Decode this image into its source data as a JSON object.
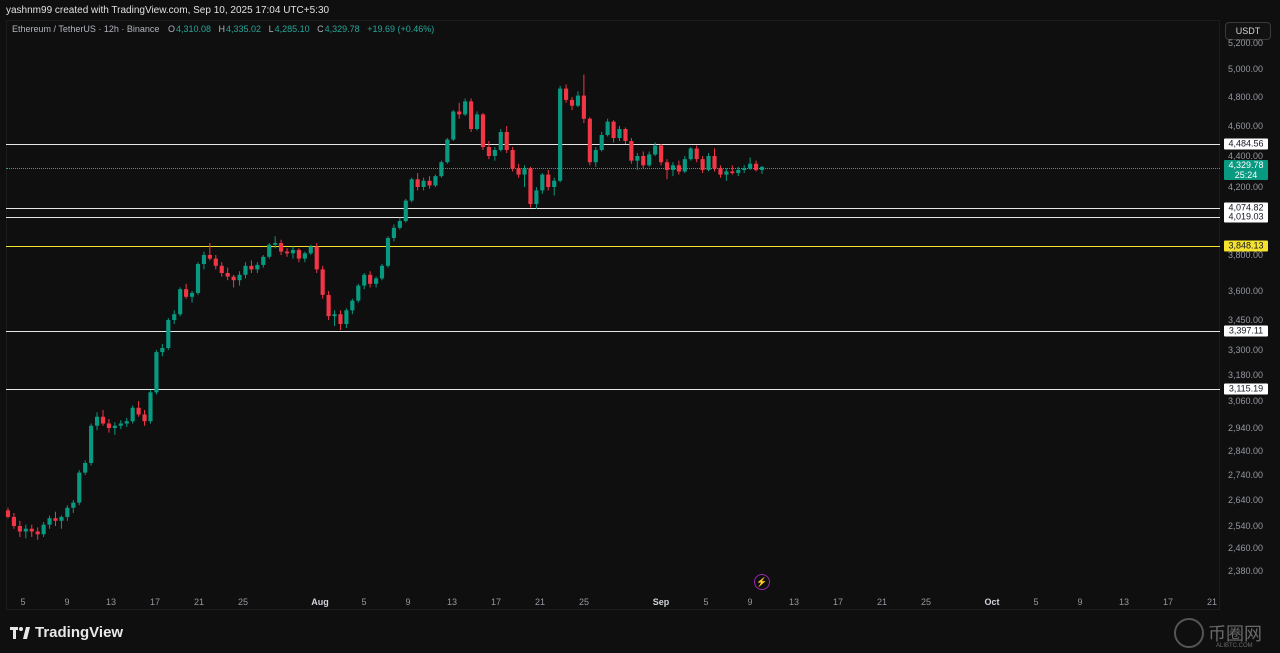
{
  "attribution": "yashnm99 created with TradingView.com, Sep 10, 2025 17:04 UTC+5:30",
  "legend": {
    "symbol": "Ethereum / TetherUS · 12h · Binance",
    "open_label": "O",
    "open": "4,310.08",
    "high_label": "H",
    "high": "4,335.02",
    "low_label": "L",
    "low": "4,285.10",
    "close_label": "C",
    "close": "4,329.78",
    "change": "+19.69 (+0.46%)"
  },
  "currency_button": "USDT",
  "price_ticks": [
    "5,200.00",
    "5,000.00",
    "4,800.00",
    "4,600.00",
    "4,400.00",
    "4,200.00",
    "3,800.00",
    "3,600.00",
    "3,450.00",
    "3,300.00",
    "3,180.00",
    "3,060.00",
    "2,940.00",
    "2,840.00",
    "2,740.00",
    "2,640.00",
    "2,540.00",
    "2,460.00",
    "2,380.00"
  ],
  "levels": [
    {
      "value": "4,484.56",
      "style": "white"
    },
    {
      "value": "4,074.82",
      "style": "white"
    },
    {
      "value": "4,019.03",
      "style": "white"
    },
    {
      "value": "3,848.13",
      "style": "yellow"
    },
    {
      "value": "3,397.11",
      "style": "white"
    },
    {
      "value": "3,115.19",
      "style": "white"
    }
  ],
  "last_price": {
    "value": "4,329.78",
    "countdown": "25:24"
  },
  "time_ticks": [
    {
      "label": "5"
    },
    {
      "label": "9"
    },
    {
      "label": "13"
    },
    {
      "label": "17"
    },
    {
      "label": "21"
    },
    {
      "label": "25"
    },
    {
      "label": "Aug",
      "bold": true
    },
    {
      "label": "5"
    },
    {
      "label": "9"
    },
    {
      "label": "13"
    },
    {
      "label": "17"
    },
    {
      "label": "21"
    },
    {
      "label": "25"
    },
    {
      "label": "Sep",
      "bold": true
    },
    {
      "label": "5"
    },
    {
      "label": "9"
    },
    {
      "label": "13"
    },
    {
      "label": "17"
    },
    {
      "label": "21"
    },
    {
      "label": "25"
    },
    {
      "label": "Oct",
      "bold": true
    },
    {
      "label": "5"
    },
    {
      "label": "9"
    },
    {
      "label": "13"
    },
    {
      "label": "17"
    },
    {
      "label": "21"
    }
  ],
  "footer": {
    "brand": "TradingView"
  },
  "watermark": {
    "text": "币圈网",
    "sub": "ALIBTC.COM"
  },
  "colors": {
    "up": "#089981",
    "down": "#f23645",
    "level": "#ffffff",
    "key_level": "#f5e22e"
  },
  "chart_data": {
    "type": "candlestick",
    "timeframe": "12h",
    "ylim": [
      2330,
      5240
    ],
    "candles": [
      [
        2600,
        2610,
        2570,
        2575
      ],
      [
        2575,
        2590,
        2530,
        2540
      ],
      [
        2540,
        2560,
        2500,
        2520
      ],
      [
        2520,
        2545,
        2495,
        2530
      ],
      [
        2530,
        2545,
        2500,
        2520
      ],
      [
        2520,
        2535,
        2490,
        2510
      ],
      [
        2510,
        2555,
        2500,
        2545
      ],
      [
        2545,
        2580,
        2530,
        2570
      ],
      [
        2570,
        2595,
        2540,
        2560
      ],
      [
        2560,
        2580,
        2530,
        2575
      ],
      [
        2575,
        2620,
        2560,
        2610
      ],
      [
        2610,
        2640,
        2590,
        2630
      ],
      [
        2630,
        2760,
        2620,
        2750
      ],
      [
        2750,
        2800,
        2740,
        2790
      ],
      [
        2790,
        2960,
        2780,
        2950
      ],
      [
        2950,
        3010,
        2930,
        2990
      ],
      [
        2990,
        3020,
        2950,
        2960
      ],
      [
        2960,
        2980,
        2920,
        2940
      ],
      [
        2940,
        2965,
        2910,
        2950
      ],
      [
        2950,
        2975,
        2935,
        2960
      ],
      [
        2960,
        2985,
        2945,
        2970
      ],
      [
        2970,
        3040,
        2960,
        3030
      ],
      [
        3030,
        3060,
        2990,
        3000
      ],
      [
        3000,
        3020,
        2950,
        2970
      ],
      [
        2970,
        3110,
        2960,
        3100
      ],
      [
        3100,
        3300,
        3090,
        3290
      ],
      [
        3290,
        3330,
        3270,
        3310
      ],
      [
        3310,
        3460,
        3300,
        3450
      ],
      [
        3450,
        3500,
        3430,
        3480
      ],
      [
        3480,
        3620,
        3470,
        3610
      ],
      [
        3610,
        3640,
        3560,
        3570
      ],
      [
        3570,
        3600,
        3540,
        3590
      ],
      [
        3590,
        3760,
        3580,
        3750
      ],
      [
        3750,
        3820,
        3720,
        3800
      ],
      [
        3800,
        3870,
        3770,
        3780
      ],
      [
        3780,
        3800,
        3720,
        3740
      ],
      [
        3740,
        3760,
        3680,
        3700
      ],
      [
        3700,
        3730,
        3660,
        3680
      ],
      [
        3680,
        3690,
        3620,
        3660
      ],
      [
        3660,
        3710,
        3630,
        3690
      ],
      [
        3690,
        3760,
        3670,
        3740
      ],
      [
        3740,
        3770,
        3700,
        3720
      ],
      [
        3720,
        3760,
        3700,
        3745
      ],
      [
        3745,
        3800,
        3730,
        3790
      ],
      [
        3790,
        3870,
        3780,
        3860
      ],
      [
        3860,
        3910,
        3840,
        3870
      ],
      [
        3870,
        3890,
        3800,
        3820
      ],
      [
        3820,
        3840,
        3790,
        3810
      ],
      [
        3810,
        3850,
        3780,
        3830
      ],
      [
        3830,
        3840,
        3760,
        3780
      ],
      [
        3780,
        3820,
        3760,
        3810
      ],
      [
        3810,
        3860,
        3800,
        3850
      ],
      [
        3850,
        3870,
        3700,
        3720
      ],
      [
        3720,
        3740,
        3560,
        3580
      ],
      [
        3580,
        3600,
        3450,
        3470
      ],
      [
        3470,
        3500,
        3420,
        3480
      ],
      [
        3480,
        3500,
        3400,
        3430
      ],
      [
        3430,
        3510,
        3410,
        3500
      ],
      [
        3500,
        3560,
        3480,
        3550
      ],
      [
        3550,
        3640,
        3540,
        3630
      ],
      [
        3630,
        3700,
        3610,
        3690
      ],
      [
        3690,
        3710,
        3620,
        3640
      ],
      [
        3640,
        3680,
        3620,
        3670
      ],
      [
        3670,
        3750,
        3660,
        3740
      ],
      [
        3740,
        3910,
        3730,
        3900
      ],
      [
        3900,
        3980,
        3880,
        3960
      ],
      [
        3960,
        4020,
        3950,
        4000
      ],
      [
        4000,
        4130,
        3990,
        4120
      ],
      [
        4120,
        4260,
        4110,
        4250
      ],
      [
        4250,
        4290,
        4180,
        4200
      ],
      [
        4200,
        4260,
        4180,
        4240
      ],
      [
        4240,
        4270,
        4190,
        4210
      ],
      [
        4210,
        4280,
        4200,
        4270
      ],
      [
        4270,
        4370,
        4260,
        4360
      ],
      [
        4360,
        4520,
        4350,
        4510
      ],
      [
        4510,
        4710,
        4500,
        4700
      ],
      [
        4700,
        4760,
        4650,
        4680
      ],
      [
        4680,
        4790,
        4670,
        4770
      ],
      [
        4770,
        4790,
        4560,
        4580
      ],
      [
        4580,
        4700,
        4570,
        4680
      ],
      [
        4680,
        4690,
        4440,
        4460
      ],
      [
        4460,
        4500,
        4380,
        4400
      ],
      [
        4400,
        4460,
        4370,
        4440
      ],
      [
        4440,
        4580,
        4430,
        4560
      ],
      [
        4560,
        4600,
        4420,
        4440
      ],
      [
        4440,
        4460,
        4300,
        4320
      ],
      [
        4320,
        4350,
        4260,
        4280
      ],
      [
        4280,
        4340,
        4200,
        4320
      ],
      [
        4320,
        4330,
        4080,
        4100
      ],
      [
        4100,
        4200,
        4070,
        4180
      ],
      [
        4180,
        4290,
        4160,
        4280
      ],
      [
        4280,
        4310,
        4180,
        4200
      ],
      [
        4200,
        4260,
        4150,
        4240
      ],
      [
        4240,
        4880,
        4230,
        4860
      ],
      [
        4860,
        4890,
        4760,
        4780
      ],
      [
        4780,
        4800,
        4710,
        4740
      ],
      [
        4740,
        4840,
        4730,
        4810
      ],
      [
        4810,
        4960,
        4620,
        4650
      ],
      [
        4650,
        4660,
        4340,
        4360
      ],
      [
        4360,
        4460,
        4330,
        4440
      ],
      [
        4440,
        4560,
        4430,
        4540
      ],
      [
        4540,
        4650,
        4530,
        4630
      ],
      [
        4630,
        4640,
        4490,
        4520
      ],
      [
        4520,
        4600,
        4500,
        4580
      ],
      [
        4580,
        4590,
        4480,
        4500
      ],
      [
        4500,
        4520,
        4350,
        4370
      ],
      [
        4370,
        4420,
        4310,
        4400
      ],
      [
        4400,
        4430,
        4320,
        4340
      ],
      [
        4340,
        4430,
        4330,
        4410
      ],
      [
        4410,
        4490,
        4400,
        4470
      ],
      [
        4470,
        4480,
        4340,
        4360
      ],
      [
        4360,
        4380,
        4250,
        4310
      ],
      [
        4310,
        4360,
        4270,
        4340
      ],
      [
        4340,
        4370,
        4280,
        4300
      ],
      [
        4300,
        4400,
        4290,
        4380
      ],
      [
        4380,
        4460,
        4370,
        4450
      ],
      [
        4450,
        4470,
        4360,
        4380
      ],
      [
        4380,
        4400,
        4290,
        4310
      ],
      [
        4310,
        4420,
        4300,
        4400
      ],
      [
        4400,
        4450,
        4300,
        4320
      ],
      [
        4320,
        4340,
        4260,
        4280
      ],
      [
        4280,
        4320,
        4240,
        4300
      ],
      [
        4300,
        4340,
        4280,
        4290
      ],
      [
        4290,
        4330,
        4270,
        4310
      ],
      [
        4310,
        4340,
        4290,
        4320
      ],
      [
        4320,
        4390,
        4310,
        4350
      ],
      [
        4350,
        4370,
        4300,
        4310
      ],
      [
        4310,
        4335,
        4285,
        4330
      ]
    ]
  }
}
